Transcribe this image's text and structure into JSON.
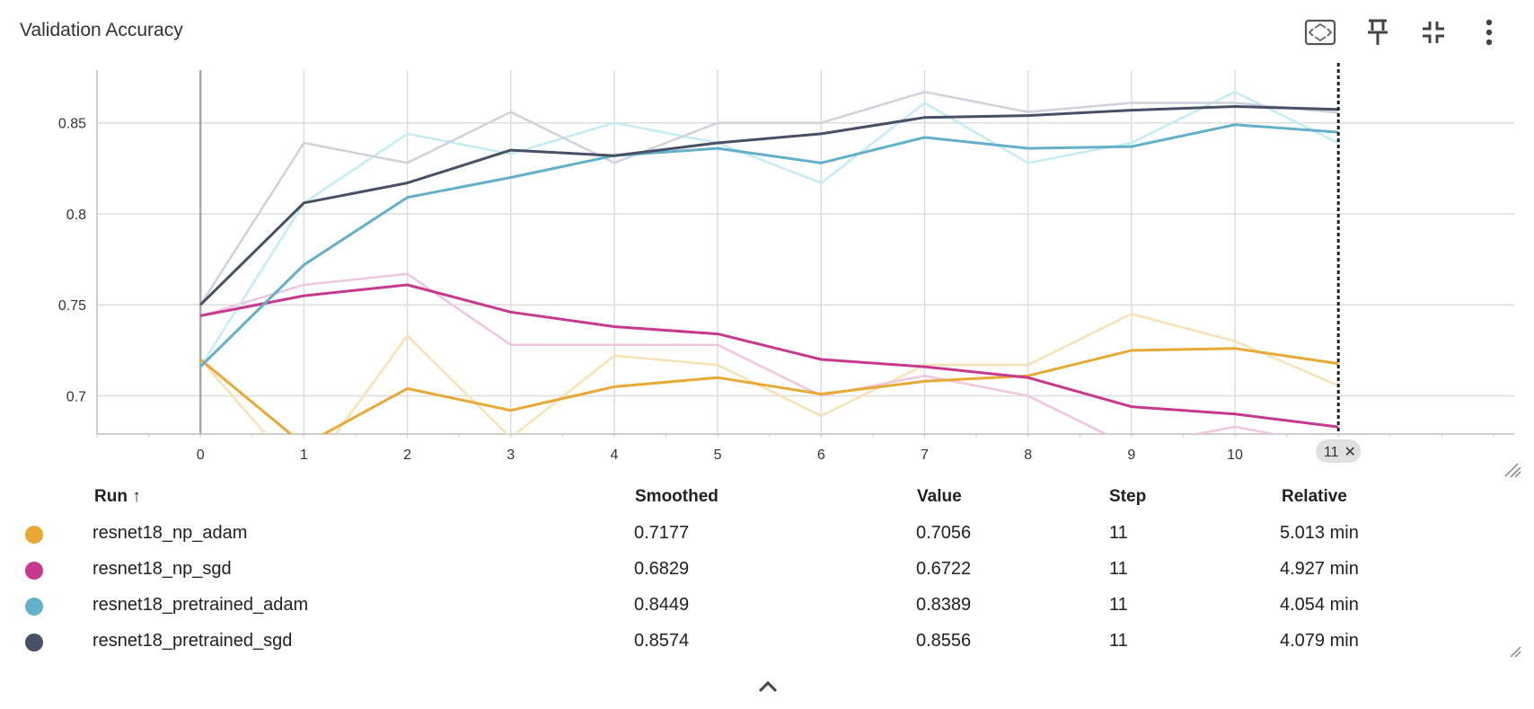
{
  "title": "Validation Accuracy",
  "toolbar": {
    "items": [
      {
        "name": "fit-domain-icon"
      },
      {
        "name": "pin-icon"
      },
      {
        "name": "collapse-icon"
      },
      {
        "name": "more-vert-icon"
      }
    ]
  },
  "chart_data": {
    "type": "line",
    "xlabel": "",
    "ylabel": "",
    "xlim": [
      -1,
      12.7
    ],
    "ylim": [
      0.679,
      0.879
    ],
    "x_ticks": [
      0,
      1,
      2,
      3,
      4,
      5,
      6,
      7,
      8,
      9,
      10
    ],
    "y_ticks": [
      0.7,
      0.75,
      0.8,
      0.85
    ],
    "y_tick_labels": [
      "0.7",
      "0.75",
      "0.8",
      "0.85"
    ],
    "grid": true,
    "hover_step": 11,
    "hover_step_label": "11",
    "series": [
      {
        "name": "resnet18_np_adam",
        "color": "#e8a935",
        "raw_color": "#f8e2b4",
        "x": [
          0,
          1,
          2,
          3,
          4,
          5,
          6,
          7,
          8,
          9,
          10,
          11
        ],
        "raw": [
          0.72,
          0.655,
          0.733,
          0.677,
          0.722,
          0.717,
          0.689,
          0.717,
          0.717,
          0.745,
          0.73,
          0.7056
        ],
        "smoothed": [
          0.72,
          0.673,
          0.704,
          0.692,
          0.705,
          0.71,
          0.701,
          0.708,
          0.711,
          0.725,
          0.726,
          0.7177
        ]
      },
      {
        "name": "resnet18_np_sgd",
        "color": "#c8398e",
        "raw_color": "#f0c6df",
        "x": [
          0,
          1,
          2,
          3,
          4,
          5,
          6,
          7,
          8,
          9,
          10,
          11
        ],
        "raw": [
          0.744,
          0.761,
          0.767,
          0.728,
          0.728,
          0.728,
          0.7,
          0.711,
          0.7,
          0.672,
          0.683,
          0.6722
        ],
        "smoothed": [
          0.744,
          0.755,
          0.761,
          0.746,
          0.738,
          0.734,
          0.72,
          0.716,
          0.71,
          0.694,
          0.69,
          0.6829
        ]
      },
      {
        "name": "resnet18_pretrained_adam",
        "color": "#62b0c9",
        "raw_color": "#c4ecf5",
        "x": [
          0,
          1,
          2,
          3,
          4,
          5,
          6,
          7,
          8,
          9,
          10,
          11
        ],
        "raw": [
          0.716,
          0.806,
          0.844,
          0.833,
          0.85,
          0.839,
          0.817,
          0.861,
          0.828,
          0.839,
          0.867,
          0.8389
        ],
        "smoothed": [
          0.716,
          0.772,
          0.809,
          0.82,
          0.832,
          0.836,
          0.828,
          0.842,
          0.836,
          0.837,
          0.849,
          0.8449
        ]
      },
      {
        "name": "resnet18_pretrained_sgd",
        "color": "#475065",
        "raw_color": "#cfd2dc",
        "x": [
          0,
          1,
          2,
          3,
          4,
          5,
          6,
          7,
          8,
          9,
          10,
          11
        ],
        "raw": [
          0.75,
          0.839,
          0.828,
          0.856,
          0.828,
          0.85,
          0.85,
          0.867,
          0.856,
          0.861,
          0.861,
          0.8556
        ],
        "smoothed": [
          0.75,
          0.806,
          0.817,
          0.835,
          0.832,
          0.839,
          0.844,
          0.853,
          0.854,
          0.857,
          0.859,
          0.8574
        ]
      }
    ]
  },
  "table": {
    "headers": {
      "run": "Run ↑",
      "smoothed": "Smoothed",
      "value": "Value",
      "step": "Step",
      "relative": "Relative"
    },
    "rows": [
      {
        "run": "resnet18_np_adam",
        "smoothed": "0.7177",
        "value": "0.7056",
        "step": "11",
        "relative": "5.013 min",
        "color": "#e8a935"
      },
      {
        "run": "resnet18_np_sgd",
        "smoothed": "0.6829",
        "value": "0.6722",
        "step": "11",
        "relative": "4.927 min",
        "color": "#c8398e"
      },
      {
        "run": "resnet18_pretrained_adam",
        "smoothed": "0.8449",
        "value": "0.8389",
        "step": "11",
        "relative": "4.054 min",
        "color": "#62b0c9"
      },
      {
        "run": "resnet18_pretrained_sgd",
        "smoothed": "0.8574",
        "value": "0.8556",
        "step": "11",
        "relative": "4.079 min",
        "color": "#475065"
      }
    ]
  }
}
